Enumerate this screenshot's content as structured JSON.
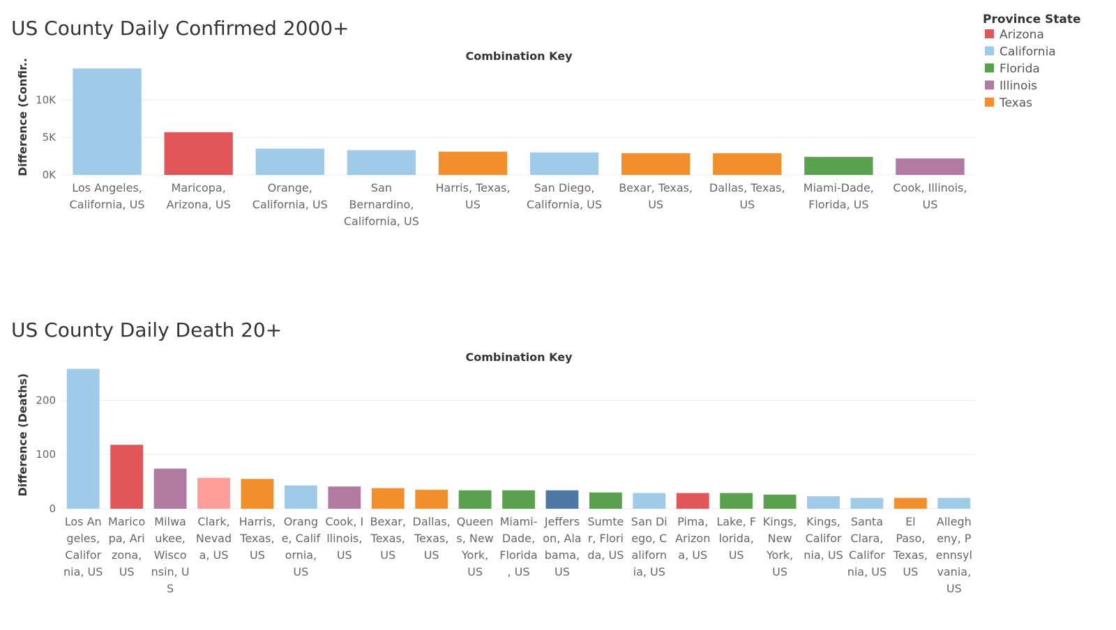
{
  "legend": {
    "title": "Province State",
    "items": [
      {
        "label": "Arizona",
        "color": "#e15759"
      },
      {
        "label": "California",
        "color": "#a0cbe8"
      },
      {
        "label": "Florida",
        "color": "#59a14f"
      },
      {
        "label": "Illinois",
        "color": "#b07aa1"
      },
      {
        "label": "Texas",
        "color": "#f28e2b"
      }
    ]
  },
  "chart_data": [
    {
      "type": "bar",
      "title": "US County Daily Confirmed 2000+",
      "xlabel": "Combination Key",
      "ylabel": "Difference (Confir..",
      "ylim": [
        0,
        14500
      ],
      "yticks": [
        {
          "value": 0,
          "label": "0K"
        },
        {
          "value": 5000,
          "label": "5K"
        },
        {
          "value": 10000,
          "label": "10K"
        }
      ],
      "grid": true,
      "categories": [
        "Los Angeles, California, US",
        "Maricopa, Arizona, US",
        "Orange, California, US",
        "San Bernardino, California, US",
        "Harris, Texas, US",
        "San Diego, California, US",
        "Bexar, Texas, US",
        "Dallas, Texas, US",
        "Miami-Dade, Florida, US",
        "Cook, Illinois, US"
      ],
      "category_lines": [
        [
          "Los Angeles,",
          "California, US"
        ],
        [
          "Maricopa,",
          "Arizona, US"
        ],
        [
          "Orange,",
          "California, US"
        ],
        [
          "San",
          "Bernardino,",
          "California, US"
        ],
        [
          "Harris, Texas,",
          "US"
        ],
        [
          "San Diego,",
          "California, US"
        ],
        [
          "Bexar, Texas,",
          "US"
        ],
        [
          "Dallas, Texas,",
          "US"
        ],
        [
          "Miami-Dade,",
          "Florida, US"
        ],
        [
          "Cook, Illinois,",
          "US"
        ]
      ],
      "values": [
        14200,
        5700,
        3500,
        3300,
        3100,
        3000,
        2900,
        2900,
        2400,
        2200
      ],
      "colors": [
        "#a0cbe8",
        "#e15759",
        "#a0cbe8",
        "#a0cbe8",
        "#f28e2b",
        "#a0cbe8",
        "#f28e2b",
        "#f28e2b",
        "#59a14f",
        "#b07aa1"
      ]
    },
    {
      "type": "bar",
      "title": "US County Daily Death 20+",
      "xlabel": "Combination Key",
      "ylabel": "Difference (Deaths)",
      "ylim": [
        0,
        270
      ],
      "yticks": [
        {
          "value": 0,
          "label": "0"
        },
        {
          "value": 100,
          "label": "100"
        },
        {
          "value": 200,
          "label": "200"
        }
      ],
      "grid": true,
      "categories": [
        "Los Angeles, California, US",
        "Maricopa, Arizona, US",
        "Milwaukee, Wisconsin, US",
        "Clark, Nevada, US",
        "Harris, Texas, US",
        "Orange, California, US",
        "Cook, Illinois, US",
        "Bexar, Texas, US",
        "Dallas, Texas, US",
        "Queens, New York, US",
        "Miami-Dade, Florida, US",
        "Jefferson, Alabama, US",
        "Sumter, Florida, US",
        "San Diego, California, US",
        "Pima, Arizona, US",
        "Lake, Florida, US",
        "Kings, New York, US",
        "Kings, California, US",
        "Santa Clara, California, US",
        "El Paso, Texas, US",
        "Allegheny, Pennsylvania, US"
      ],
      "category_lines": [
        [
          "Los An",
          "geles,",
          "Califor",
          "nia, US"
        ],
        [
          "Marico",
          "pa, Ari",
          "zona,",
          "US"
        ],
        [
          "Milwa",
          "ukee,",
          "Wisco",
          "nsin, U",
          "S"
        ],
        [
          "Clark,",
          "Nevad",
          "a, US"
        ],
        [
          "Harris,",
          "Texas,",
          "US"
        ],
        [
          "Orang",
          "e, Calif",
          "ornia,",
          "US"
        ],
        [
          "Cook, I",
          "llinois,",
          "US"
        ],
        [
          "Bexar,",
          "Texas,",
          "US"
        ],
        [
          "Dallas,",
          "Texas,",
          "US"
        ],
        [
          "Queen",
          "s, New",
          "York,",
          "US"
        ],
        [
          "Miami-",
          "Dade,",
          "Florida",
          ", US"
        ],
        [
          "Jeffers",
          "on, Ala",
          "bama,",
          "US"
        ],
        [
          "Sumte",
          "r, Flori",
          "da, US"
        ],
        [
          "San Di",
          "ego, C",
          "aliforn",
          "ia, US"
        ],
        [
          "Pima,",
          "Arizon",
          "a, US"
        ],
        [
          "Lake, F",
          "lorida,",
          "US"
        ],
        [
          "Kings,",
          "New",
          "York,",
          "US"
        ],
        [
          "Kings,",
          "Califor",
          "nia, US"
        ],
        [
          "Santa",
          "Clara,",
          "Califor",
          "nia, US"
        ],
        [
          "El",
          "Paso,",
          "Texas,",
          "US"
        ],
        [
          "Allegh",
          "eny, P",
          "ennsyl",
          "vania,",
          "US"
        ]
      ],
      "values": [
        258,
        118,
        74,
        57,
        55,
        43,
        41,
        38,
        35,
        34,
        34,
        34,
        30,
        29,
        29,
        29,
        26,
        23,
        20,
        20,
        20
      ],
      "colors": [
        "#a0cbe8",
        "#e15759",
        "#b07aa1",
        "#ff9d9a",
        "#f28e2b",
        "#a0cbe8",
        "#b07aa1",
        "#f28e2b",
        "#f28e2b",
        "#59a14f",
        "#59a14f",
        "#4e79a7",
        "#59a14f",
        "#a0cbe8",
        "#e15759",
        "#59a14f",
        "#59a14f",
        "#a0cbe8",
        "#a0cbe8",
        "#f28e2b",
        "#a0cbe8"
      ]
    }
  ]
}
